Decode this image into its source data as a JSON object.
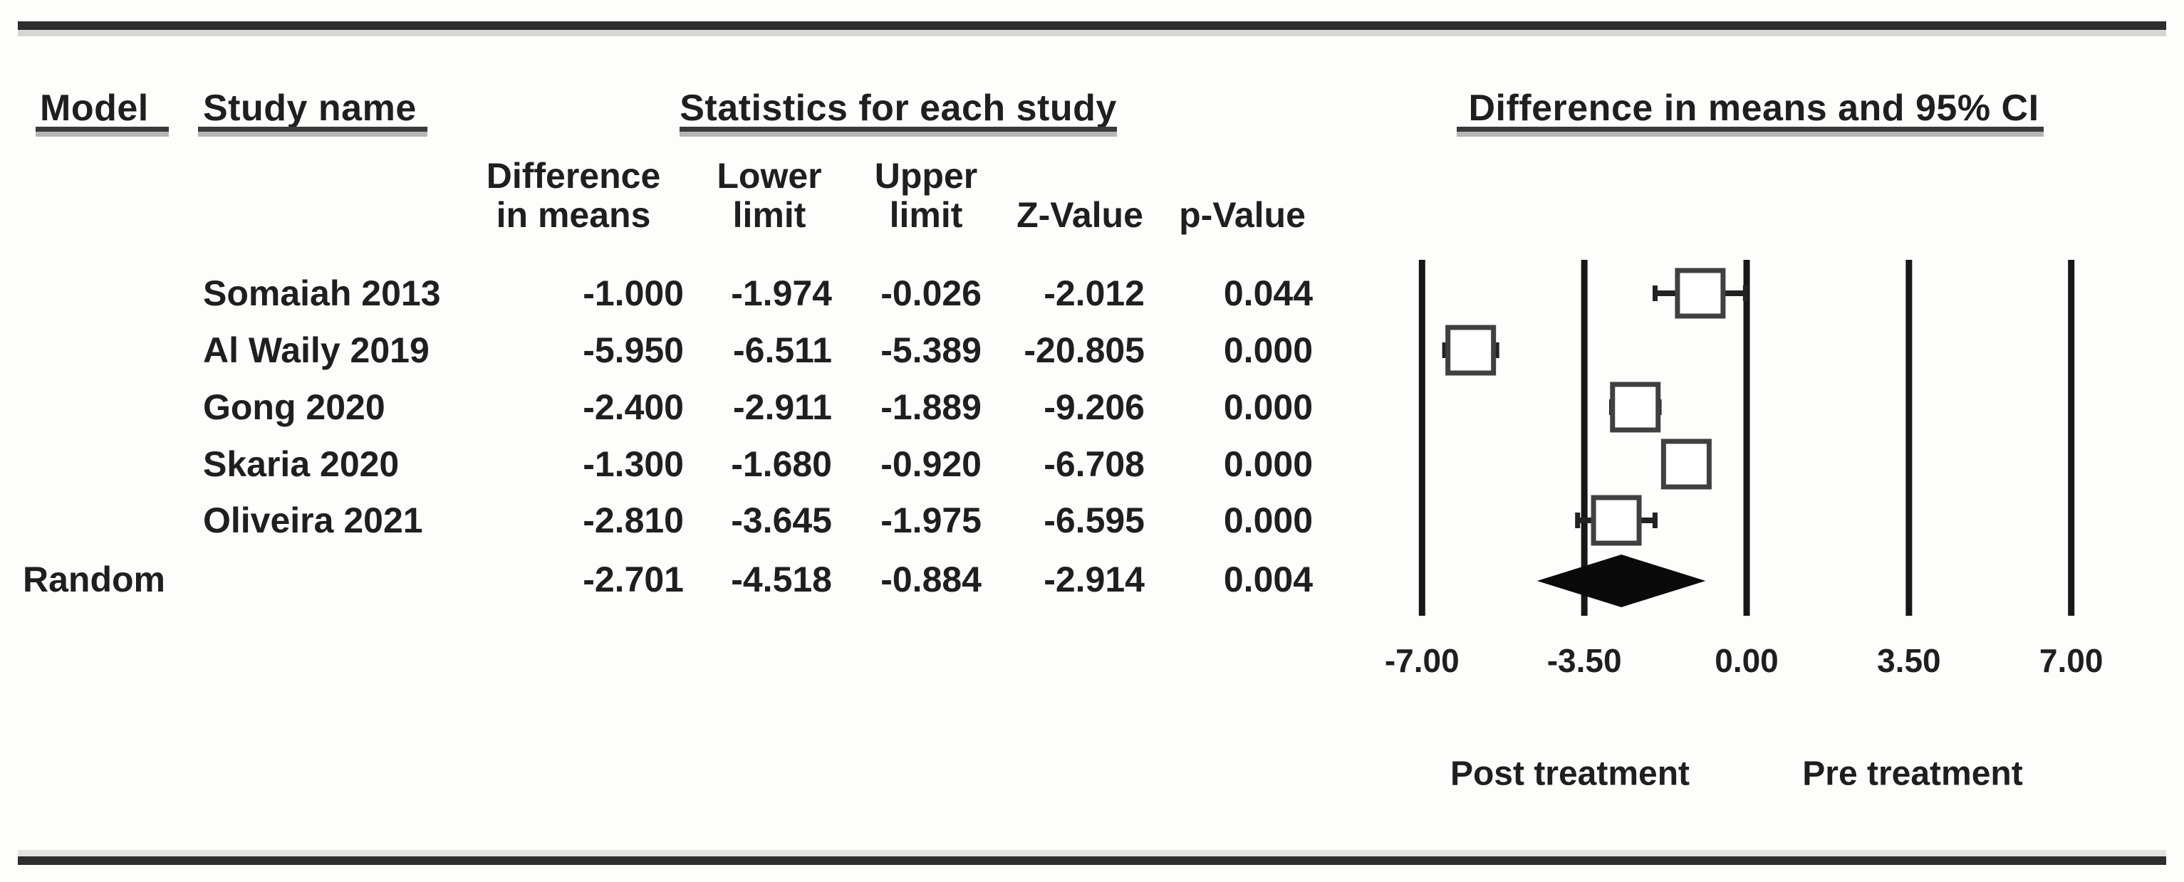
{
  "table": {
    "group_headers": {
      "model": "Model",
      "study_name": "Study name",
      "statistics": "Statistics for each study",
      "plot": "Difference in means and 95% CI"
    },
    "stat_columns": [
      {
        "line1": "Difference",
        "line2": "in means"
      },
      {
        "line1": "Lower",
        "line2": "limit"
      },
      {
        "line1": "Upper",
        "line2": "limit"
      },
      {
        "line1": "",
        "line2": "Z-Value"
      },
      {
        "line1": "",
        "line2": "p-Value"
      }
    ],
    "rows": [
      {
        "study": "Somaiah 2013",
        "cells": [
          "-1.000",
          "-1.974",
          "-0.026",
          "-2.012",
          "0.044"
        ]
      },
      {
        "study": "Al Waily 2019",
        "cells": [
          "-5.950",
          "-6.511",
          "-5.389",
          "-20.805",
          "0.000"
        ]
      },
      {
        "study": "Gong 2020",
        "cells": [
          "-2.400",
          "-2.911",
          "-1.889",
          "-9.206",
          "0.000"
        ]
      },
      {
        "study": "Skaria 2020",
        "cells": [
          "-1.300",
          "-1.680",
          "-0.920",
          "-6.708",
          "0.000"
        ]
      },
      {
        "study": "Oliveira 2021",
        "cells": [
          "-2.810",
          "-3.645",
          "-1.975",
          "-6.595",
          "0.000"
        ]
      }
    ],
    "summary_row": {
      "model": "Random",
      "cells": [
        "-2.701",
        "-4.518",
        "-0.884",
        "-2.914",
        "0.004"
      ]
    }
  },
  "plot": {
    "tick_labels": [
      "-7.00",
      "-3.50",
      "0.00",
      "3.50",
      "7.00"
    ],
    "footer_labels": [
      "Post treatment",
      "Pre treatment"
    ]
  },
  "chart_data": {
    "type": "scatter",
    "subtype": "forest_plot_meta_analysis",
    "title": "Difference in means and 95% CI",
    "stats_group_header": "Statistics for each study",
    "row_header_labels": [
      "Model",
      "Study name"
    ],
    "stat_column_labels": [
      "Difference in means",
      "Lower limit",
      "Upper limit",
      "Z-Value",
      "p-Value"
    ],
    "x_axis": {
      "ticks": [
        -7.0,
        -3.5,
        0.0,
        3.5,
        7.0
      ],
      "tick_labels": [
        "-7.00",
        "-3.50",
        "0.00",
        "3.50",
        "7.00"
      ],
      "xlim": [
        -7.0,
        7.0
      ],
      "label_left_half": "Post treatment",
      "label_right_half": "Pre treatment",
      "gridlines": true
    },
    "series": [
      {
        "name": "Somaiah 2013",
        "diff_in_means": -1.0,
        "lower_limit": -1.974,
        "upper_limit": -0.026,
        "z_value": -2.012,
        "p_value": 0.044,
        "marker": "square"
      },
      {
        "name": "Al Waily 2019",
        "diff_in_means": -5.95,
        "lower_limit": -6.511,
        "upper_limit": -5.389,
        "z_value": -20.805,
        "p_value": 0.0,
        "marker": "square"
      },
      {
        "name": "Gong 2020",
        "diff_in_means": -2.4,
        "lower_limit": -2.911,
        "upper_limit": -1.889,
        "z_value": -9.206,
        "p_value": 0.0,
        "marker": "square"
      },
      {
        "name": "Skaria 2020",
        "diff_in_means": -1.3,
        "lower_limit": -1.68,
        "upper_limit": -0.92,
        "z_value": -6.708,
        "p_value": 0.0,
        "marker": "square"
      },
      {
        "name": "Oliveira 2021",
        "diff_in_means": -2.81,
        "lower_limit": -3.645,
        "upper_limit": -1.975,
        "z_value": -6.595,
        "p_value": 0.0,
        "marker": "square"
      }
    ],
    "summary": {
      "model": "Random",
      "diff_in_means": -2.701,
      "lower_limit": -4.518,
      "upper_limit": -0.884,
      "z_value": -2.914,
      "p_value": 0.004,
      "marker": "diamond"
    },
    "colors": {
      "text": "#1f1f1f",
      "gridline": "#171717",
      "square_stroke": "#404040",
      "square_fill": "#ffffff",
      "whisker": "#222222",
      "diamond_fill": "#0a0a0a",
      "rule": "#2d2d2d"
    }
  }
}
